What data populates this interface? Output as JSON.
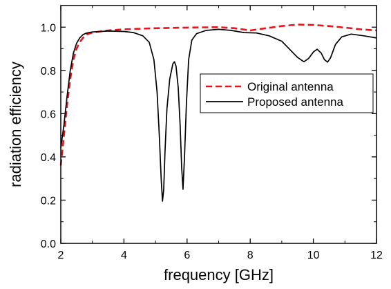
{
  "chart_data": {
    "type": "line",
    "xlabel": "frequency [GHz]",
    "ylabel": "radiation efficiency",
    "xlim": [
      2,
      12
    ],
    "ylim": [
      0,
      1.1
    ],
    "x_ticks": [
      2,
      4,
      6,
      8,
      10,
      12
    ],
    "y_ticks": [
      0.0,
      0.2,
      0.4,
      0.6,
      0.8,
      1.0
    ],
    "x_tick_labels": [
      "2",
      "4",
      "6",
      "8",
      "10",
      "12"
    ],
    "y_tick_labels": [
      "0.0",
      "0.2",
      "0.4",
      "0.6",
      "0.8",
      "1.0"
    ],
    "grid": false,
    "legend_position": "right",
    "series": [
      {
        "name": "Original antenna",
        "color": "#e8141c",
        "style": "dashed",
        "points": [
          [
            2.0,
            0.36
          ],
          [
            2.1,
            0.5
          ],
          [
            2.2,
            0.64
          ],
          [
            2.3,
            0.76
          ],
          [
            2.4,
            0.85
          ],
          [
            2.5,
            0.9
          ],
          [
            2.6,
            0.93
          ],
          [
            2.7,
            0.95
          ],
          [
            2.8,
            0.965
          ],
          [
            3.0,
            0.975
          ],
          [
            3.5,
            0.985
          ],
          [
            4.0,
            0.99
          ],
          [
            5.0,
            0.995
          ],
          [
            6.0,
            0.998
          ],
          [
            7.0,
            1.0
          ],
          [
            7.5,
            0.995
          ],
          [
            8.0,
            0.985
          ],
          [
            8.5,
            0.995
          ],
          [
            9.0,
            1.005
          ],
          [
            9.5,
            1.012
          ],
          [
            10.0,
            1.01
          ],
          [
            10.5,
            1.005
          ],
          [
            11.0,
            0.998
          ],
          [
            11.5,
            0.99
          ],
          [
            12.0,
            0.985
          ]
        ]
      },
      {
        "name": "Proposed antenna",
        "color": "#000000",
        "style": "solid",
        "points": [
          [
            2.0,
            0.44
          ],
          [
            2.1,
            0.55
          ],
          [
            2.2,
            0.68
          ],
          [
            2.3,
            0.8
          ],
          [
            2.4,
            0.88
          ],
          [
            2.5,
            0.925
          ],
          [
            2.6,
            0.95
          ],
          [
            2.7,
            0.965
          ],
          [
            2.8,
            0.972
          ],
          [
            3.0,
            0.978
          ],
          [
            3.5,
            0.982
          ],
          [
            4.0,
            0.98
          ],
          [
            4.3,
            0.975
          ],
          [
            4.6,
            0.96
          ],
          [
            4.8,
            0.93
          ],
          [
            4.95,
            0.85
          ],
          [
            5.05,
            0.7
          ],
          [
            5.12,
            0.5
          ],
          [
            5.18,
            0.3
          ],
          [
            5.22,
            0.195
          ],
          [
            5.26,
            0.25
          ],
          [
            5.3,
            0.42
          ],
          [
            5.36,
            0.62
          ],
          [
            5.45,
            0.76
          ],
          [
            5.55,
            0.83
          ],
          [
            5.6,
            0.84
          ],
          [
            5.65,
            0.82
          ],
          [
            5.72,
            0.72
          ],
          [
            5.78,
            0.55
          ],
          [
            5.83,
            0.35
          ],
          [
            5.87,
            0.25
          ],
          [
            5.92,
            0.4
          ],
          [
            5.98,
            0.65
          ],
          [
            6.05,
            0.85
          ],
          [
            6.15,
            0.94
          ],
          [
            6.3,
            0.97
          ],
          [
            6.6,
            0.985
          ],
          [
            7.0,
            0.99
          ],
          [
            7.4,
            0.985
          ],
          [
            7.8,
            0.975
          ],
          [
            8.2,
            0.973
          ],
          [
            8.6,
            0.96
          ],
          [
            9.0,
            0.935
          ],
          [
            9.3,
            0.89
          ],
          [
            9.5,
            0.86
          ],
          [
            9.7,
            0.84
          ],
          [
            9.85,
            0.855
          ],
          [
            10.0,
            0.885
          ],
          [
            10.12,
            0.898
          ],
          [
            10.25,
            0.88
          ],
          [
            10.35,
            0.85
          ],
          [
            10.45,
            0.838
          ],
          [
            10.55,
            0.86
          ],
          [
            10.7,
            0.92
          ],
          [
            10.9,
            0.955
          ],
          [
            11.2,
            0.968
          ],
          [
            11.6,
            0.96
          ],
          [
            12.0,
            0.95
          ]
        ]
      }
    ]
  }
}
